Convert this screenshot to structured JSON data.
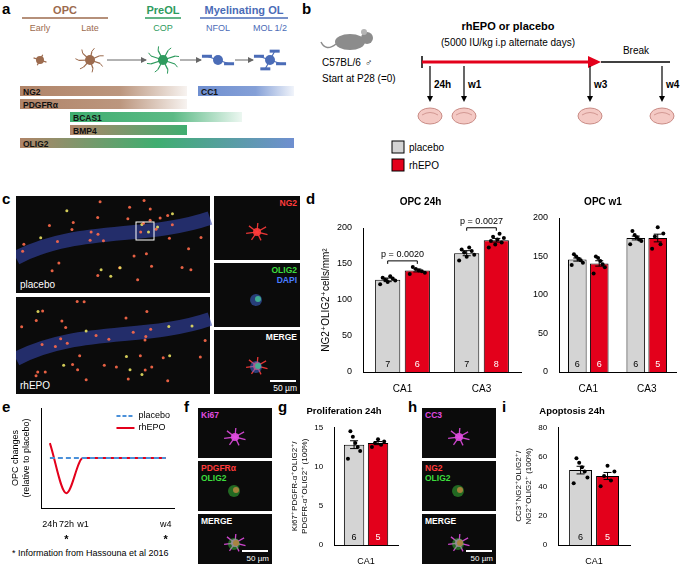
{
  "letters": [
    "a",
    "b",
    "c",
    "d",
    "e",
    "f",
    "g",
    "h",
    "i"
  ],
  "diagram_a": {
    "groups": [
      {
        "label": "OPC",
        "color": "#9c6b4e",
        "stages": [
          "Early",
          "Late"
        ]
      },
      {
        "label": "PreOL",
        "color": "#2e9b5e",
        "stages": [
          "COP"
        ]
      },
      {
        "label": "Myelinating OL",
        "color": "#4b6cb7",
        "stages": [
          "NFOL",
          "MOL 1/2"
        ]
      }
    ],
    "markers": [
      {
        "label": "NG2",
        "from": "Early",
        "to": "COP",
        "colors": [
          "#b08468"
        ]
      },
      {
        "label": "PDGFRα",
        "from": "Early",
        "to": "COP",
        "colors": [
          "#b08468"
        ]
      },
      {
        "label": "CC1",
        "from": "NFOL",
        "to": "MOL 1/2",
        "colors": [
          "#6f8fd0"
        ]
      },
      {
        "label": "BCAS1",
        "from": "Late",
        "to": "NFOL",
        "colors": [
          "#3fae70"
        ]
      },
      {
        "label": "BMP4",
        "from": "Late",
        "to": "COP",
        "colors": [
          "#b08468",
          "#3fae70"
        ]
      },
      {
        "label": "OLIG2",
        "from": "Early",
        "to": "MOL 1/2",
        "colors": [
          "#b08468",
          "#3fae70",
          "#6f8fd0"
        ]
      }
    ]
  },
  "timeline_b": {
    "strain": "C57BL/6",
    "sex": "♂",
    "start": "Start at P28 (=0)",
    "treatment": "rhEPO or placebo",
    "dose": "(5000 IU/kg i.p alternate days)",
    "break": "Break",
    "timepoints": [
      "24h",
      "w1",
      "w3",
      "w4"
    ]
  },
  "images": [
    {
      "conditions": [
        "placebo",
        "rhEPO"
      ],
      "channels": [
        [
          {
            "label": "NG2",
            "color": "#ff3b3b"
          }
        ],
        [
          {
            "label": "OLIG2",
            "color": "#3ddc3d"
          },
          {
            "label": "DAPI",
            "color": "#4a7dff"
          }
        ],
        [
          {
            "label": "MERGE",
            "color": "#ffffff"
          }
        ]
      ],
      "scale": "50 µm"
    },
    {
      "channels": [
        [
          {
            "label": "Ki67",
            "color": "#e04ce0"
          }
        ],
        [
          {
            "label": "PDGFRα",
            "color": "#ff3b3b"
          },
          {
            "label": "OLIG2",
            "color": "#3ddc3d"
          }
        ],
        [
          {
            "label": "MERGE",
            "color": "#ffffff"
          }
        ]
      ],
      "scale": "50 µm"
    },
    {
      "channels": [
        [
          {
            "label": "CC3",
            "color": "#e04ce0"
          }
        ],
        [
          {
            "label": "NG2",
            "color": "#ff3b3b"
          },
          {
            "label": "OLIG2",
            "color": "#3ddc3d"
          }
        ],
        [
          {
            "label": "MERGE",
            "color": "#ffffff"
          }
        ]
      ],
      "scale": "50 µm"
    }
  ],
  "chart_data": [
    {
      "type": "bar",
      "title": "OPC 24h",
      "categories": [
        "CA1",
        "CA3"
      ],
      "y_label": "NG2⁺OLIG2⁺cells/mm²",
      "ylim": [
        0,
        200
      ],
      "yticks": [
        0,
        50,
        100,
        150,
        200
      ],
      "grid": false,
      "series": [
        {
          "name": "placebo",
          "color": "#d4d4d4",
          "values": [
            128,
            165
          ],
          "errors": [
            2.5,
            3.5
          ],
          "n": [
            7,
            7
          ],
          "points": [
            [
              122,
              125,
              127,
              128,
              130,
              131,
              133
            ],
            [
              155,
              160,
              163,
              166,
              168,
              170,
              173
            ]
          ]
        },
        {
          "name": "rhEPO",
          "color": "#e3001b",
          "values": [
            141,
            183
          ],
          "errors": [
            2,
            2.5
          ],
          "n": [
            6,
            8
          ],
          "points": [
            [
              136,
              138,
              140,
              141,
              143,
              146
            ],
            [
              173,
              177,
              180,
              182,
              184,
              186,
              188,
              192
            ]
          ]
        }
      ],
      "annotations": [
        {
          "category": "CA1",
          "text": "p = 0.0020"
        },
        {
          "category": "CA3",
          "text": "p = 0.0027"
        }
      ]
    },
    {
      "type": "bar",
      "title": "OPC w1",
      "categories": [
        "CA1",
        "CA3"
      ],
      "ylim": [
        0,
        200
      ],
      "yticks": [
        0,
        50,
        100,
        150,
        200
      ],
      "grid": false,
      "series": [
        {
          "name": "placebo",
          "color": "#d4d4d4",
          "values": [
            146,
            174
          ],
          "errors": [
            2,
            2.5
          ],
          "n": [
            6,
            6
          ],
          "points": [
            [
              139,
              142,
              145,
              147,
              150,
              153
            ],
            [
              166,
              170,
              172,
              175,
              178,
              183
            ]
          ]
        },
        {
          "name": "rhEPO",
          "color": "#e3001b",
          "values": [
            141,
            174
          ],
          "errors": [
            3.5,
            5
          ],
          "n": [
            6,
            5
          ],
          "points": [
            [
              128,
              136,
              140,
              144,
              148,
              150
            ],
            [
              160,
              166,
              176,
              180,
              188
            ]
          ]
        }
      ]
    },
    {
      "type": "line",
      "categories": [
        "24h",
        "72h",
        "w1",
        null,
        null,
        null,
        null,
        "w4"
      ],
      "y_label": [
        "OPC changes",
        "(relative to placebo)"
      ],
      "ylim": [
        -1,
        1
      ],
      "grid": false,
      "tick_labels": "x",
      "legend": "top-right",
      "series": [
        {
          "name": "placebo",
          "color": "#4a90d9",
          "line_style": "dashed",
          "values": [
            0,
            0,
            0,
            0,
            0,
            0,
            0,
            0
          ]
        },
        {
          "name": "rhEPO",
          "color": "#e3001b",
          "line_style": "solid",
          "values": [
            0.3,
            -0.7,
            0,
            0,
            0,
            0,
            0,
            0
          ]
        }
      ],
      "asterisk": "*",
      "asterisk_at": [
        "72h",
        "w4"
      ],
      "note": "* Information from Hassouna et al 2016"
    },
    {
      "type": "bar",
      "title": "Proliferation 24h",
      "categories": [
        "CA1"
      ],
      "y_label": [
        "Ki67⁺PDGFR-α⁺OLIG2⁺/",
        "PDGFR-α⁺OLIG2⁺ (100%)"
      ],
      "ylim": [
        0,
        15
      ],
      "yticks": [
        0,
        5,
        10,
        15
      ],
      "grid": false,
      "series": [
        {
          "name": "placebo",
          "color": "#d4d4d4",
          "values": [
            12.8
          ],
          "errors": [
            0.5
          ],
          "n": [
            6
          ],
          "points": [
            [
              11.0,
              12.0,
              12.5,
              13.0,
              13.8,
              14.5
            ]
          ]
        },
        {
          "name": "rhEPO",
          "color": "#e3001b",
          "values": [
            13.0
          ],
          "errors": [
            0.2
          ],
          "n": [
            5
          ],
          "points": [
            [
              12.5,
              12.8,
              13.0,
              13.2,
              13.5
            ]
          ]
        }
      ]
    },
    {
      "type": "bar",
      "title": "Apoptosis 24h",
      "categories": [
        "CA1"
      ],
      "y_label": [
        "CC3⁺NG2⁺OLIG2⁺/",
        "NG2⁺OLIG2⁺ (100%)"
      ],
      "ylim": [
        0,
        80
      ],
      "yticks": [
        0,
        20,
        40,
        60,
        80
      ],
      "grid": false,
      "series": [
        {
          "name": "placebo",
          "color": "#d4d4d4",
          "values": [
            51
          ],
          "errors": [
            2.6
          ],
          "n": [
            6
          ],
          "points": [
            [
              42,
              46,
              50,
              53,
              56,
              59
            ]
          ]
        },
        {
          "name": "rhEPO",
          "color": "#e3001b",
          "values": [
            47
          ],
          "errors": [
            2.4
          ],
          "n": [
            5
          ],
          "points": [
            [
              40,
              44,
              47,
              50,
              54
            ]
          ]
        }
      ]
    }
  ]
}
